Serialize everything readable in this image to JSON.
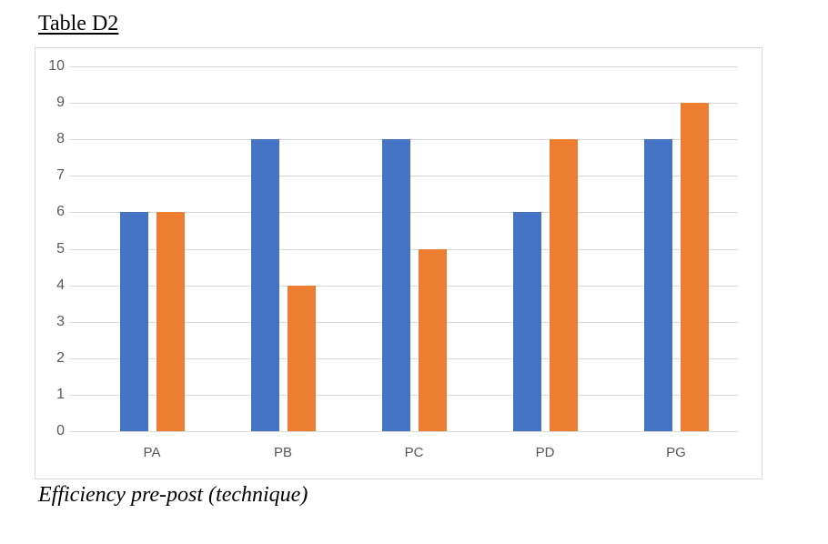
{
  "page": {
    "title": "Table D2",
    "caption": "Efficiency pre-post (technique)"
  },
  "chart_data": {
    "type": "bar",
    "title": "Table D2",
    "caption": "Efficiency pre-post (technique)",
    "categories": [
      "PA",
      "PB",
      "PC",
      "PD",
      "PG"
    ],
    "series": [
      {
        "name": "blue",
        "color": "#4472C4",
        "values": [
          6,
          8,
          8,
          6,
          8
        ]
      },
      {
        "name": "orange",
        "color": "#ED7D31",
        "values": [
          6,
          4,
          5,
          8,
          9
        ]
      }
    ],
    "xlabel": "",
    "ylabel": "",
    "ylim": [
      0,
      10
    ],
    "ytick_step": 1,
    "yticks": [
      0,
      1,
      2,
      3,
      4,
      5,
      6,
      7,
      8,
      9,
      10
    ],
    "grid": true,
    "legend": "none",
    "gridline_color": "#d9d9d9",
    "tick_label_color": "#595959",
    "plot_border_color": "#d9d9d9"
  }
}
